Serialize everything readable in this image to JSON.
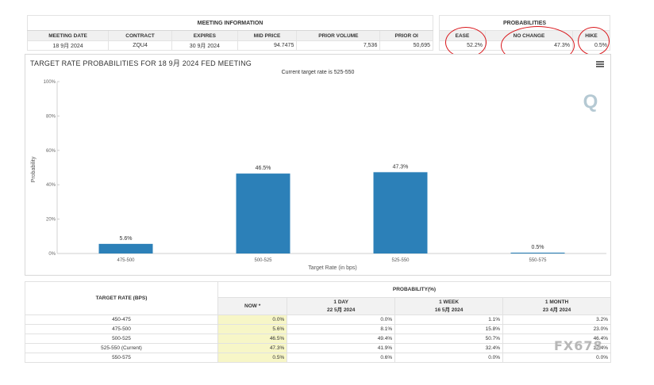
{
  "meeting_info": {
    "title": "MEETING INFORMATION",
    "headers": [
      "MEETING DATE",
      "CONTRACT",
      "EXPIRES",
      "MID PRICE",
      "PRIOR VOLUME",
      "PRIOR OI"
    ],
    "row": [
      "18 9月 2024",
      "ZQU4",
      "30 9月 2024",
      "94.7475",
      "7,536",
      "50,695"
    ]
  },
  "probabilities_top": {
    "title": "PROBABILITIES",
    "headers": [
      "EASE",
      "NO CHANGE",
      "HIKE"
    ],
    "row": [
      "52.2%",
      "47.3%",
      "0.5%"
    ]
  },
  "chart": {
    "title": "TARGET RATE PROBABILITIES FOR 18 9月 2024 FED MEETING",
    "subtitle": "Current target rate is 525-550",
    "menu_icon": "hamburger-menu-icon",
    "logo_text": "Q"
  },
  "chart_data": {
    "type": "bar",
    "categories": [
      "475-500",
      "500-525",
      "525-550",
      "550-575"
    ],
    "values": [
      5.6,
      46.5,
      47.3,
      0.5
    ],
    "data_labels": [
      "5.6%",
      "46.5%",
      "47.3%",
      "0.5%"
    ],
    "xlabel": "Target Rate (in bps)",
    "ylabel": "Probability",
    "ylim": [
      0,
      100
    ],
    "yticks": [
      "0%",
      "20%",
      "40%",
      "60%",
      "80%",
      "100%"
    ],
    "bar_color": "#2c80b8",
    "grid": false
  },
  "bottom_table": {
    "rate_header": "TARGET RATE (BPS)",
    "prob_header": "PROBABILITY(%)",
    "columns": [
      {
        "label": "NOW *",
        "date": ""
      },
      {
        "label": "1 DAY",
        "date": "22 5月 2024"
      },
      {
        "label": "1 WEEK",
        "date": "16 5月 2024"
      },
      {
        "label": "1 MONTH",
        "date": "23 4月 2024"
      }
    ],
    "rows": [
      {
        "rate": "450-475",
        "values": [
          "0.0%",
          "0.0%",
          "1.1%",
          "3.2%"
        ]
      },
      {
        "rate": "475-500",
        "values": [
          "5.6%",
          "8.1%",
          "15.8%",
          "23.0%"
        ]
      },
      {
        "rate": "500-525",
        "values": [
          "46.5%",
          "49.4%",
          "50.7%",
          "46.4%"
        ]
      },
      {
        "rate": "525-550 (Current)",
        "values": [
          "47.3%",
          "41.9%",
          "32.4%",
          "27.4%"
        ]
      },
      {
        "rate": "550-575",
        "values": [
          "0.5%",
          "0.6%",
          "0.0%",
          "0.0%"
        ]
      }
    ]
  },
  "watermark": "FX678",
  "colors": {
    "highlight": "#f7f6c7",
    "circle": "#d9161b",
    "bar": "#2c80b8"
  }
}
